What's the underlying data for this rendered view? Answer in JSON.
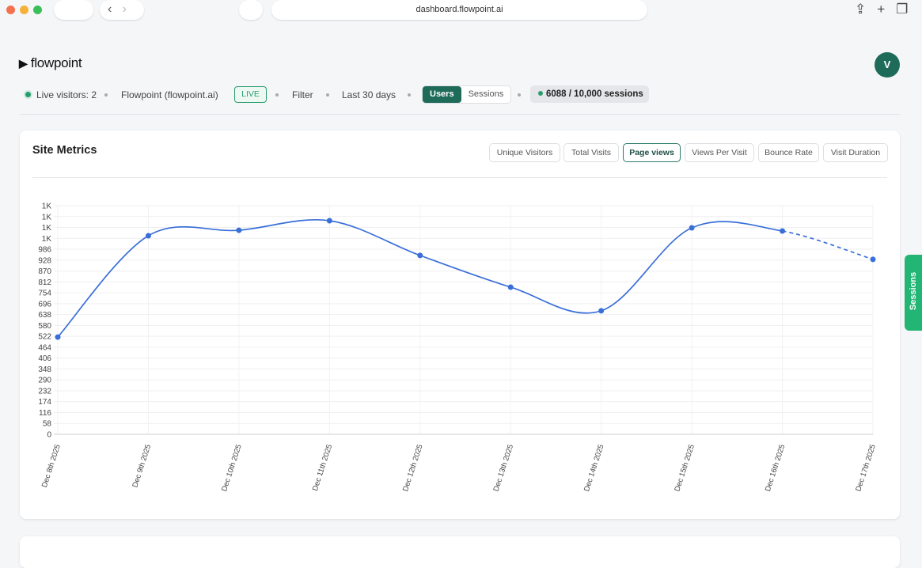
{
  "browser": {
    "url": "dashboard.flowpoint.ai"
  },
  "header": {
    "logo": "flowpoint",
    "avatar": "V"
  },
  "toolbar": {
    "live_visitors": "Live visitors: 2",
    "site": "Flowpoint (flowpoint.ai)",
    "live": "LIVE",
    "filter": "Filter",
    "range": "Last 30 days",
    "toggle": [
      "Users",
      "Sessions"
    ],
    "active_toggle": 0,
    "usage": "6088 / 10,000 sessions"
  },
  "card": {
    "title": "Site Metrics",
    "tabs": [
      "Unique Visitors",
      "Total Visits",
      "Page views",
      "Views Per Visit",
      "Bounce Rate",
      "Visit Duration"
    ],
    "active_tab": 2
  },
  "side_tab": "Sessions",
  "chart_data": {
    "type": "line",
    "categories": [
      "Dec 8th 2025",
      "Dec 9th 2025",
      "Dec 10th 2025",
      "Dec 11th 2025",
      "Dec 12th 2025",
      "Dec 13th 2025",
      "Dec 14th 2025",
      "Dec 15th 2025",
      "Dec 16th 2025",
      "Dec 17th 2025"
    ],
    "values": [
      518,
      1058,
      1087,
      1138,
      953,
      784,
      658,
      1100,
      1083,
      932
    ],
    "color": "#3a6fd8",
    "dashed_last_segment": true,
    "ylim": [
      0,
      1218
    ],
    "yticks": [
      0,
      58,
      116,
      174,
      232,
      290,
      348,
      406,
      464,
      522,
      580,
      638,
      696,
      754,
      812,
      870,
      928,
      986,
      {
        "value": 1044,
        "label": "1K"
      },
      {
        "value": 1102,
        "label": "1K"
      },
      {
        "value": 1160,
        "label": "1K"
      },
      {
        "value": 1218,
        "label": "1K"
      }
    ],
    "grid": true
  }
}
